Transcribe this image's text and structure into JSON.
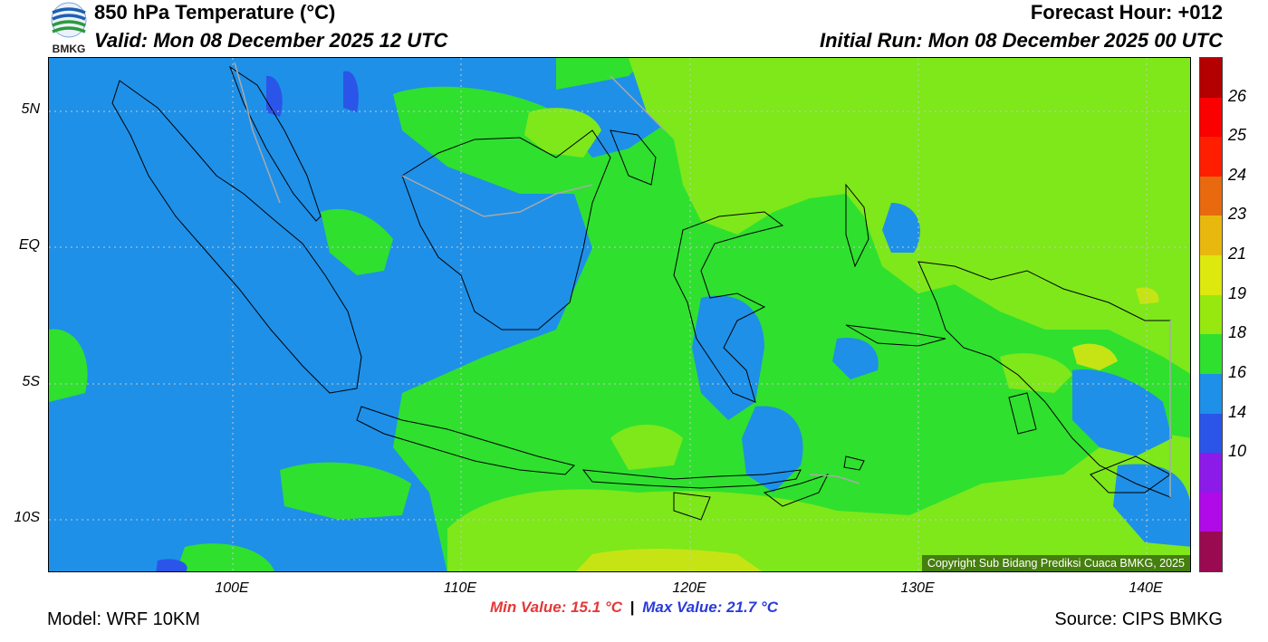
{
  "header": {
    "title": "850 hPa Temperature (°C)",
    "forecast_hour": "Forecast Hour: +012",
    "valid": "Valid: Mon 08 December 2025 12 UTC",
    "initial_run": "Initial Run: Mon 08 December 2025 00 UTC",
    "logo_text": "BMKG"
  },
  "map": {
    "lat_labels": [
      "5N",
      "EQ",
      "5S",
      "10S"
    ],
    "lon_labels": [
      "100E",
      "110E",
      "120E",
      "130E",
      "140E"
    ],
    "copyright": "Copyright Sub Bidang Prediksi Cuaca BMKG, 2025",
    "colors": {
      "c14_16": "#1e90e8",
      "c18_19": "#2fe02f",
      "c19_21": "#7ee81a",
      "c21_23": "#c6e414",
      "boundary": "#000000",
      "border_gray": "#a9a9a9"
    }
  },
  "colorbar": {
    "labels": [
      "26",
      "25",
      "24",
      "23",
      "21",
      "19",
      "18",
      "16",
      "14",
      "10"
    ],
    "colors": [
      "#b40000",
      "#fa0000",
      "#ff1e00",
      "#e8690e",
      "#e8b80e",
      "#dde80e",
      "#96e80e",
      "#2fe02f",
      "#1e90e8",
      "#2a55e8",
      "#8c1ae8",
      "#b00ae8",
      "#9a0a50"
    ]
  },
  "stats": {
    "min": "Min Value: 15.1 °C",
    "separator": "|",
    "max": "Max Value: 21.7 °C"
  },
  "footer": {
    "model": "Model: WRF 10KM",
    "source": "Source: CIPS BMKG"
  }
}
